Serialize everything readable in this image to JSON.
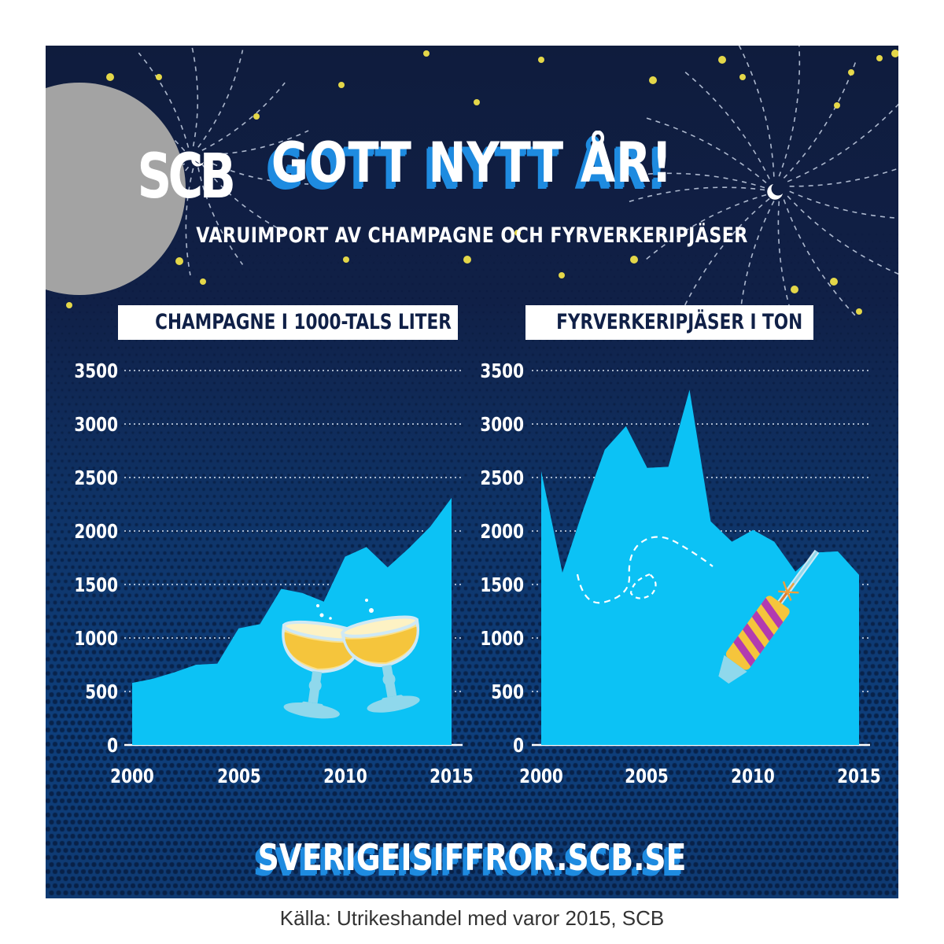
{
  "logo": {
    "text": "SCB"
  },
  "header": {
    "title": "GOTT NYTT ÅR!",
    "subtitle": "VARUIMPORT AV CHAMPAGNE OCH FYRVERKERIPJÄSER"
  },
  "footer": {
    "url": "SVERIGEISIFFROR.SCB.SE",
    "source": "Källa: Utrikeshandel med varor 2015, SCB"
  },
  "colors": {
    "area": "#0cc2f5",
    "background_top": "#0f1c3d",
    "background_bottom": "#0e3f7c",
    "title_shadow": "#1e8be0",
    "logo": "#a3a3a3",
    "star": "#f0e24a"
  },
  "icons": {
    "left_chart": "champagne-glasses-icon",
    "right_chart": "firework-rocket-icon"
  },
  "chart_data": [
    {
      "type": "area",
      "title": "CHAMPAGNE I 1000-TALS LITER",
      "xlabel": "",
      "ylabel": "",
      "ylim": [
        0,
        3500
      ],
      "yticks": [
        0,
        500,
        1000,
        1500,
        2000,
        2500,
        3000,
        3500
      ],
      "xlim": [
        2000,
        2015
      ],
      "xticks": [
        2000,
        2005,
        2010,
        2015
      ],
      "grid": true,
      "x": [
        2000,
        2001,
        2002,
        2003,
        2004,
        2005,
        2006,
        2007,
        2008,
        2009,
        2010,
        2011,
        2012,
        2013,
        2014,
        2015
      ],
      "series": [
        {
          "values": [
            580,
            620,
            680,
            750,
            760,
            1090,
            1130,
            1460,
            1420,
            1340,
            1760,
            1850,
            1660,
            1840,
            2040,
            2310
          ]
        }
      ]
    },
    {
      "type": "area",
      "title": "FYRVERKERIPJÄSER I TON",
      "xlabel": "",
      "ylabel": "",
      "ylim": [
        0,
        3500
      ],
      "yticks": [
        0,
        500,
        1000,
        1500,
        2000,
        2500,
        3000,
        3500
      ],
      "xlim": [
        2000,
        2015
      ],
      "xticks": [
        2000,
        2005,
        2010,
        2015
      ],
      "grid": true,
      "x": [
        2000,
        2001,
        2002,
        2003,
        2004,
        2005,
        2006,
        2007,
        2008,
        2009,
        2010,
        2011,
        2012,
        2013,
        2014,
        2015
      ],
      "series": [
        {
          "values": [
            2560,
            1610,
            2210,
            2760,
            2980,
            2590,
            2600,
            3320,
            2090,
            1900,
            2010,
            1900,
            1620,
            1800,
            1810,
            1590
          ]
        }
      ]
    }
  ]
}
